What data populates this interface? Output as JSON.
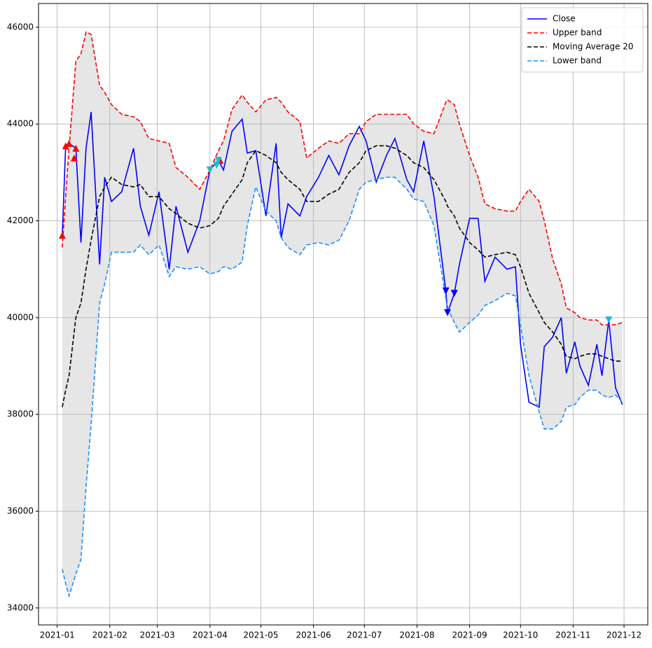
{
  "chart_data": {
    "type": "line",
    "x": [
      "2021-01-04",
      "2021-01-06",
      "2021-01-08",
      "2021-01-12",
      "2021-01-15",
      "2021-01-18",
      "2021-01-21",
      "2021-01-26",
      "2021-01-29",
      "2021-02-02",
      "2021-02-08",
      "2021-02-15",
      "2021-02-19",
      "2021-02-24",
      "2021-03-02",
      "2021-03-08",
      "2021-03-12",
      "2021-03-19",
      "2021-03-26",
      "2021-04-01",
      "2021-04-06",
      "2021-04-09",
      "2021-04-14",
      "2021-04-20",
      "2021-04-23",
      "2021-04-28",
      "2021-05-04",
      "2021-05-10",
      "2021-05-13",
      "2021-05-17",
      "2021-05-24",
      "2021-05-28",
      "2021-06-04",
      "2021-06-10",
      "2021-06-16",
      "2021-06-22",
      "2021-06-28",
      "2021-07-02",
      "2021-07-08",
      "2021-07-14",
      "2021-07-19",
      "2021-07-26",
      "2021-07-30",
      "2021-08-05",
      "2021-08-11",
      "2021-08-18",
      "2021-08-19",
      "2021-08-23",
      "2021-08-26",
      "2021-09-01",
      "2021-09-06",
      "2021-09-10",
      "2021-09-16",
      "2021-09-23",
      "2021-09-28",
      "2021-10-01",
      "2021-10-06",
      "2021-10-12",
      "2021-10-15",
      "2021-10-20",
      "2021-10-25",
      "2021-10-28",
      "2021-11-02",
      "2021-11-05",
      "2021-11-10",
      "2021-11-15",
      "2021-11-18",
      "2021-11-22",
      "2021-11-26",
      "2021-11-30"
    ],
    "series": [
      {
        "name": "Close",
        "color": "#0000ff",
        "dash": false,
        "values": [
          41700,
          43550,
          43600,
          43500,
          41550,
          43500,
          44250,
          41100,
          42900,
          42400,
          42600,
          43500,
          42300,
          41700,
          42600,
          41000,
          42300,
          41350,
          42000,
          43050,
          43250,
          43050,
          43850,
          44100,
          43400,
          43450,
          42100,
          43600,
          41650,
          42350,
          42100,
          42500,
          42900,
          43350,
          42950,
          43550,
          43950,
          43650,
          42800,
          43350,
          43700,
          42850,
          42600,
          43650,
          42500,
          40550,
          40100,
          40500,
          41100,
          42050,
          42050,
          40750,
          41250,
          41000,
          41050,
          39450,
          38250,
          38150,
          39400,
          39600,
          40000,
          38850,
          39500,
          39000,
          38600,
          39450,
          38800,
          39950,
          38550,
          38200
        ]
      },
      {
        "name": "Upper band",
        "color": "#ff0000",
        "dash": true,
        "values": [
          41450,
          42500,
          43500,
          45300,
          45450,
          45900,
          45850,
          44800,
          44650,
          44400,
          44200,
          44150,
          44050,
          43700,
          43650,
          43600,
          43100,
          42900,
          42650,
          43050,
          43450,
          43650,
          44300,
          44600,
          44450,
          44250,
          44500,
          44550,
          44450,
          44250,
          44050,
          43300,
          43500,
          43650,
          43600,
          43800,
          43800,
          44050,
          44200,
          44200,
          44200,
          44200,
          44000,
          43850,
          43800,
          44450,
          44500,
          44400,
          44000,
          43350,
          42900,
          42350,
          42250,
          42200,
          42200,
          42400,
          42650,
          42400,
          42000,
          41200,
          40700,
          40200,
          40100,
          40000,
          39950,
          39950,
          39850,
          39850,
          39850,
          39900
        ]
      },
      {
        "name": "Moving Average 20",
        "color": "#000000",
        "dash": true,
        "values": [
          38150,
          38500,
          38800,
          40000,
          40300,
          41000,
          41600,
          42500,
          42700,
          42900,
          42750,
          42700,
          42750,
          42500,
          42500,
          42250,
          42150,
          41950,
          41850,
          41900,
          42050,
          42300,
          42550,
          42850,
          43200,
          43450,
          43350,
          43200,
          43000,
          42850,
          42650,
          42400,
          42400,
          42550,
          42650,
          43000,
          43200,
          43450,
          43550,
          43550,
          43500,
          43350,
          43200,
          43100,
          42850,
          42400,
          42300,
          42100,
          41850,
          41550,
          41400,
          41250,
          41300,
          41350,
          41300,
          41050,
          40500,
          40100,
          39900,
          39700,
          39450,
          39200,
          39150,
          39200,
          39250,
          39250,
          39200,
          39150,
          39100,
          39100
        ]
      },
      {
        "name": "Lower band",
        "color": "#1e90ff",
        "dash": true,
        "values": [
          34800,
          34500,
          34250,
          34700,
          35000,
          36500,
          37800,
          40300,
          40700,
          41350,
          41350,
          41350,
          41500,
          41300,
          41500,
          40850,
          41050,
          41000,
          41050,
          40900,
          40950,
          41050,
          41000,
          41150,
          41900,
          42700,
          42200,
          42000,
          41650,
          41450,
          41300,
          41500,
          41550,
          41500,
          41600,
          42000,
          42650,
          42800,
          42850,
          42900,
          42900,
          42650,
          42450,
          42400,
          41900,
          40400,
          40200,
          39900,
          39700,
          39900,
          40050,
          40250,
          40350,
          40500,
          40450,
          39850,
          38800,
          38050,
          37700,
          37700,
          37850,
          38150,
          38200,
          38350,
          38500,
          38500,
          38400,
          38350,
          38400,
          38250
        ]
      }
    ],
    "markers": [
      {
        "color": "#ff0000",
        "marker": "^",
        "x": [
          "2021-01-04",
          "2021-01-06",
          "2021-01-08",
          "2021-01-11",
          "2021-01-12",
          "2021-04-07"
        ],
        "values": [
          41700,
          43550,
          43600,
          43300,
          43500,
          43250
        ]
      },
      {
        "color": "#17becf",
        "marker": "v",
        "x": [
          "2021-04-01",
          "2021-04-05",
          "2021-04-06",
          "2021-11-22"
        ],
        "values": [
          43050,
          43150,
          43250,
          39950
        ]
      },
      {
        "color": "#0000ff",
        "marker": "v",
        "x": [
          "2021-08-18",
          "2021-08-19",
          "2021-08-23"
        ],
        "values": [
          40550,
          40100,
          40500
        ]
      }
    ],
    "band_fill": "#e6e6e6",
    "xlim": [
      "2020-12-21",
      "2021-12-15"
    ],
    "xticks": [
      "2021-01",
      "2021-02",
      "2021-03",
      "2021-04",
      "2021-05",
      "2021-06",
      "2021-07",
      "2021-08",
      "2021-09",
      "2021-10",
      "2021-11",
      "2021-12"
    ],
    "ylim": [
      33650,
      46490
    ],
    "yticks": [
      34000,
      36000,
      38000,
      40000,
      42000,
      44000,
      46000
    ],
    "grid": true,
    "legend": "upper right"
  }
}
